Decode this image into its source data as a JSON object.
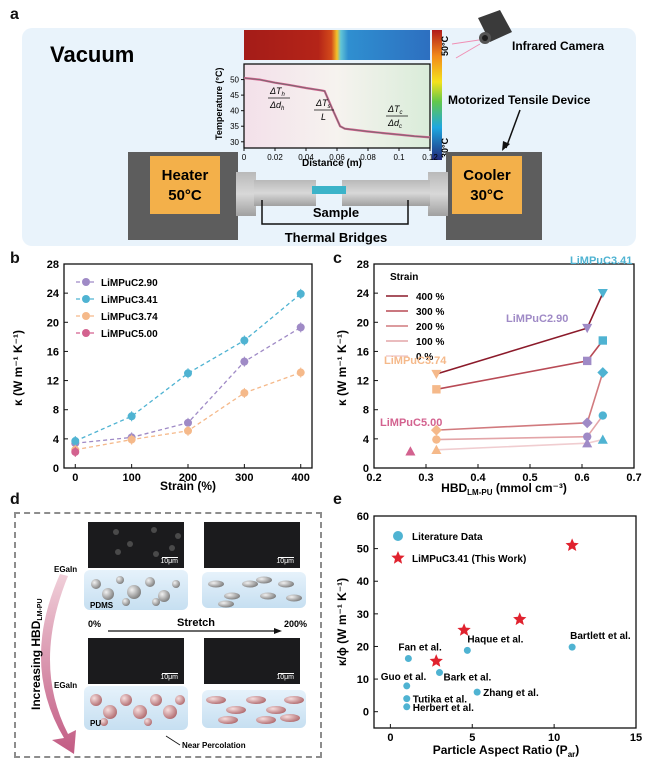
{
  "panel_labels": {
    "a": "a",
    "b": "b",
    "c": "c",
    "d": "d",
    "e": "e"
  },
  "panel_a": {
    "vacuum": "Vacuum",
    "infrared_camera": "Infrared Camera",
    "motorized_tensile_device": "Motorized Tensile Device",
    "heater": "Heater",
    "heater_temp": "50°C",
    "cooler": "Cooler",
    "cooler_temp": "30°C",
    "sample": "Sample",
    "thermal_bridges": "Thermal Bridges",
    "colorbar_top": "50°C",
    "colorbar_bottom": "30°C",
    "inset_xlabel": "Distance (m)",
    "inset_ylabel": "Temperature (°C)",
    "ann_h_num": "ΔT",
    "ann_h_sub": "h",
    "ann_h_den": "Δd",
    "ann_h_den_sub": "h",
    "ann_s_num": "ΔT",
    "ann_s_sub": "s",
    "ann_s_den": "L",
    "ann_c_num": "ΔT",
    "ann_c_sub": "c",
    "ann_c_den": "Δd",
    "ann_c_den_sub": "c",
    "colors": {
      "heater": "#f3b04a",
      "cooler": "#f3b04a",
      "device": "#5d5d5d",
      "bg": "#e9f3fb"
    }
  },
  "panel_d": {
    "egaln_top": "EGaIn",
    "pdms": "PDMS",
    "egaln_bottom": "EGaIn",
    "pu": "PU",
    "near_percolation": "Near Percolation",
    "stretch": "Stretch",
    "pct_start": "0%",
    "pct_end": "200%",
    "increasing": "Increasing HBD",
    "increasing_sub": "LM-PU",
    "scalebar": "10μm"
  },
  "chart_data": [
    {
      "id": "a-inset",
      "type": "line",
      "xlabel": "Distance (m)",
      "ylabel": "Temperature (°C)",
      "xlim": [
        0,
        0.12
      ],
      "ylim": [
        28,
        55
      ],
      "xticks": [
        0,
        0.02,
        0.04,
        0.06,
        0.08,
        0.1,
        0.12
      ],
      "yticks": [
        30,
        35,
        40,
        45,
        50
      ],
      "x": [
        0,
        0.01,
        0.02,
        0.03,
        0.04,
        0.05,
        0.052,
        0.057,
        0.062,
        0.065,
        0.07,
        0.08,
        0.09,
        0.1,
        0.11,
        0.12
      ],
      "y": [
        50.5,
        50.0,
        49.0,
        48.2,
        47.3,
        46.5,
        46.3,
        40.5,
        35.0,
        34.2,
        33.9,
        33.3,
        32.8,
        32.3,
        31.8,
        31.4
      ]
    },
    {
      "id": "b",
      "type": "line",
      "xlabel": "Strain (%)",
      "ylabel": "κ (W m⁻¹ K⁻¹)",
      "xlim": [
        -20,
        420
      ],
      "ylim": [
        0,
        28
      ],
      "xticks": [
        0,
        100,
        200,
        300,
        400
      ],
      "yticks": [
        0,
        4,
        8,
        12,
        16,
        20,
        24,
        28
      ],
      "legend_position": "top-left",
      "x": [
        0,
        100,
        200,
        300,
        400
      ],
      "series": [
        {
          "name": "LiMPuC2.90",
          "color": "#9f8ac6",
          "values": [
            3.4,
            4.2,
            6.2,
            14.6,
            19.3
          ]
        },
        {
          "name": "LiMPuC3.41",
          "color": "#4fb3d2",
          "values": [
            3.7,
            7.1,
            13.0,
            17.5,
            23.9
          ]
        },
        {
          "name": "LiMPuC3.74",
          "color": "#f5b98a",
          "values": [
            2.5,
            3.9,
            5.1,
            10.3,
            13.1
          ]
        },
        {
          "name": "LiMPuC5.00",
          "color": "#d3628f",
          "values": [
            2.2,
            null,
            null,
            null,
            null
          ]
        }
      ]
    },
    {
      "id": "c",
      "type": "line",
      "xlabel": "HBD",
      "xlabel_sub": "LM-PU",
      "xlabel_unit": "(mmol cm⁻³)",
      "ylabel": "κ (W m⁻¹ K⁻¹)",
      "xlim": [
        0.2,
        0.7
      ],
      "ylim": [
        0,
        28
      ],
      "xticks": [
        0.2,
        0.3,
        0.4,
        0.5,
        0.6,
        0.7
      ],
      "yticks": [
        0,
        4,
        8,
        12,
        16,
        20,
        24,
        28
      ],
      "legend_title": "Strain",
      "legend_position": "top-left",
      "x": [
        0.32,
        0.61,
        0.64
      ],
      "series": [
        {
          "name": "400 %",
          "color": "#8b1a2a",
          "marker": "triangle-down",
          "values": [
            12.9,
            19.2,
            24.0
          ]
        },
        {
          "name": "300 %",
          "color": "#b84a55",
          "marker": "square",
          "values": [
            10.8,
            14.7,
            17.5
          ]
        },
        {
          "name": "200 %",
          "color": "#d17a7e",
          "marker": "diamond",
          "values": [
            5.2,
            6.2,
            13.1
          ]
        },
        {
          "name": "100 %",
          "color": "#e3a5a8",
          "marker": "circle",
          "values": [
            3.9,
            4.3,
            7.2
          ]
        },
        {
          "name": "0 %",
          "color": "#f0cdd0",
          "marker": "triangle",
          "values": [
            2.5,
            3.4,
            3.9
          ]
        }
      ],
      "extra_point": {
        "x": 0.27,
        "y": 2.3,
        "color": "#d3628f"
      },
      "point_labels": [
        {
          "text": "LiMPuC3.41",
          "color": "#4fb3d2"
        },
        {
          "text": "LiMPuC2.90",
          "color": "#9f8ac6"
        },
        {
          "text": "LiMPuC3.74",
          "color": "#f5b98a"
        },
        {
          "text": "LiMPuC5.00",
          "color": "#d3628f"
        }
      ]
    },
    {
      "id": "e",
      "type": "scatter",
      "xlabel": "Particle Aspect Ratio (P",
      "xlabel_sub": "ar",
      "ylabel": "κ/ϕ (W m⁻¹ K⁻¹)",
      "xlim": [
        -1,
        15
      ],
      "ylim": [
        -5,
        60
      ],
      "xticks": [
        0,
        5,
        10,
        15
      ],
      "yticks": [
        0,
        10,
        20,
        30,
        40,
        50,
        60
      ],
      "legend": [
        {
          "name": "Literature Data",
          "marker": "circle",
          "color": "#4fb3d2"
        },
        {
          "name": "LiMPuC3.41 (This Work)",
          "marker": "star",
          "color": "#e0222e"
        }
      ],
      "literature": [
        {
          "label": "Fan et al.",
          "x": 1.1,
          "y": 16.3
        },
        {
          "label": "Haque et al.",
          "x": 4.7,
          "y": 18.8
        },
        {
          "label": "Bartlett et al.",
          "x": 11.1,
          "y": 19.8
        },
        {
          "label": "Bark et al.",
          "x": 3.0,
          "y": 12.0
        },
        {
          "label": "Guo et al.",
          "x": 1.0,
          "y": 7.9
        },
        {
          "label": "Tutika et al.",
          "x": 1.0,
          "y": 4.0
        },
        {
          "label": "Zhang et al.",
          "x": 5.3,
          "y": 6.0
        },
        {
          "label": "Herbert et al.",
          "x": 1.0,
          "y": 1.5
        }
      ],
      "this_work": {
        "x": [
          2.8,
          4.5,
          7.9,
          11.1
        ],
        "y": [
          15.5,
          25.0,
          28.3,
          51.0
        ]
      }
    }
  ]
}
